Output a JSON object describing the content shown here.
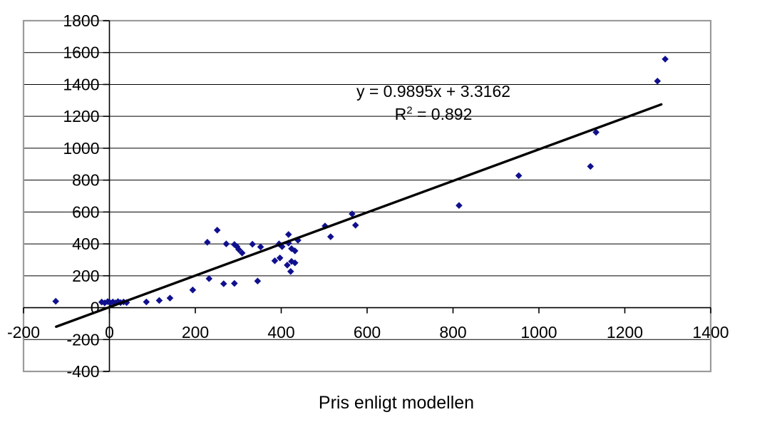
{
  "chart_data": {
    "type": "scatter",
    "title": "",
    "xlabel": "Pris enligt modellen",
    "ylabel": "",
    "xlim": [
      -200,
      1400
    ],
    "ylim": [
      -400,
      1800
    ],
    "x_ticks": [
      -200,
      0,
      200,
      400,
      600,
      800,
      1000,
      1200,
      1400
    ],
    "y_ticks": [
      1800,
      1600,
      1400,
      1200,
      1000,
      800,
      600,
      400,
      200,
      0,
      -200,
      -400
    ],
    "grid": "horizontal",
    "legend": "none",
    "annotation": {
      "equation": "y = 0.9895x + 3.3162",
      "r2_base": "R",
      "r2_exponent": "2",
      "r2_value": " = 0.892"
    },
    "series": [
      {
        "name": "",
        "marker": "diamond",
        "color": "#10108E",
        "points": [
          [
            -125,
            40
          ],
          [
            -18,
            35
          ],
          [
            -11,
            30
          ],
          [
            -4,
            38
          ],
          [
            2,
            30
          ],
          [
            8,
            36
          ],
          [
            14,
            30
          ],
          [
            20,
            38
          ],
          [
            26,
            32
          ],
          [
            33,
            36
          ],
          [
            40,
            32
          ],
          [
            86,
            36
          ],
          [
            116,
            45
          ],
          [
            141,
            60
          ],
          [
            194,
            111
          ],
          [
            228,
            410
          ],
          [
            232,
            182
          ],
          [
            251,
            486
          ],
          [
            266,
            150
          ],
          [
            272,
            400
          ],
          [
            291,
            396
          ],
          [
            291,
            152
          ],
          [
            297,
            383
          ],
          [
            301,
            365
          ],
          [
            309,
            343
          ],
          [
            333,
            398
          ],
          [
            345,
            167
          ],
          [
            352,
            381
          ],
          [
            385,
            294
          ],
          [
            395,
            400
          ],
          [
            397,
            312
          ],
          [
            402,
            383
          ],
          [
            414,
            267
          ],
          [
            417,
            459
          ],
          [
            417,
            405
          ],
          [
            422,
            227
          ],
          [
            424,
            370
          ],
          [
            424,
            290
          ],
          [
            432,
            356
          ],
          [
            432,
            281
          ],
          [
            439,
            423
          ],
          [
            502,
            512
          ],
          [
            515,
            445
          ],
          [
            565,
            588
          ],
          [
            573,
            517
          ],
          [
            814,
            641
          ],
          [
            953,
            828
          ],
          [
            1120,
            886
          ],
          [
            1133,
            1100
          ],
          [
            1276,
            1421
          ],
          [
            1294,
            1559
          ]
        ]
      }
    ],
    "trendline": {
      "slope": 0.9895,
      "intercept": 3.3162,
      "x_start": -124,
      "x_end": 1285,
      "color": "#000000"
    }
  },
  "colors": {
    "marker": "#10108E",
    "gridline": "#000000",
    "plot_border": "#9B9B9B",
    "axis": "#000000",
    "background": "#FFFFFF"
  }
}
